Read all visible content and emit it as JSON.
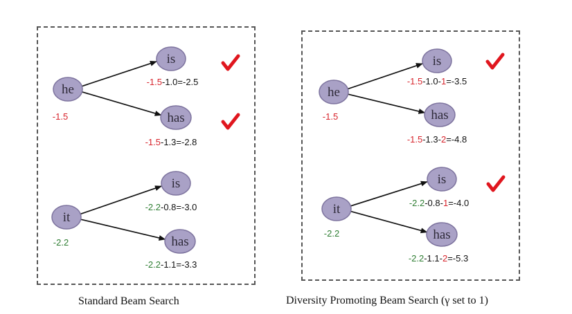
{
  "colors": {
    "node_fill": "#a9a1c6",
    "node_stroke": "#7d739e",
    "red": "#d7232b",
    "green": "#2e7d32",
    "black": "#111111",
    "check": "#e0161e"
  },
  "panels": [
    {
      "caption": "Standard Beam Search",
      "groups": [
        {
          "parent": {
            "label": "he",
            "score": [
              {
                "t": "-1.5",
                "c": "red"
              }
            ]
          },
          "children": [
            {
              "label": "is",
              "selected": true,
              "score": [
                {
                  "t": "-1.5",
                  "c": "red"
                },
                {
                  "t": "-1.0=-2.5",
                  "c": "black"
                }
              ]
            },
            {
              "label": "has",
              "selected": true,
              "score": [
                {
                  "t": "-1.5",
                  "c": "red"
                },
                {
                  "t": "-1.3=-2.8",
                  "c": "black"
                }
              ]
            }
          ]
        },
        {
          "parent": {
            "label": "it",
            "score": [
              {
                "t": "-2.2",
                "c": "green"
              }
            ]
          },
          "children": [
            {
              "label": "is",
              "selected": false,
              "score": [
                {
                  "t": "-2.2",
                  "c": "green"
                },
                {
                  "t": "-0.8=-3.0",
                  "c": "black"
                }
              ]
            },
            {
              "label": "has",
              "selected": false,
              "score": [
                {
                  "t": "-2.2",
                  "c": "green"
                },
                {
                  "t": "-1.1=-3.3",
                  "c": "black"
                }
              ]
            }
          ]
        }
      ]
    },
    {
      "caption": "Diversity Promoting Beam Search (γ set to 1)",
      "groups": [
        {
          "parent": {
            "label": "he",
            "score": [
              {
                "t": "-1.5",
                "c": "red"
              }
            ]
          },
          "children": [
            {
              "label": "is",
              "selected": true,
              "score": [
                {
                  "t": "-1.5",
                  "c": "red"
                },
                {
                  "t": "-1.0-",
                  "c": "black"
                },
                {
                  "t": "1",
                  "c": "red"
                },
                {
                  "t": "=-3.5",
                  "c": "black"
                }
              ]
            },
            {
              "label": "has",
              "selected": false,
              "score": [
                {
                  "t": "-1.5",
                  "c": "red"
                },
                {
                  "t": "-1.3-",
                  "c": "black"
                },
                {
                  "t": "2",
                  "c": "red"
                },
                {
                  "t": "=-4.8",
                  "c": "black"
                }
              ]
            }
          ]
        },
        {
          "parent": {
            "label": "it",
            "score": [
              {
                "t": "-2.2",
                "c": "green"
              }
            ]
          },
          "children": [
            {
              "label": "is",
              "selected": true,
              "score": [
                {
                  "t": "-2.2",
                  "c": "green"
                },
                {
                  "t": "-0.8-",
                  "c": "black"
                },
                {
                  "t": "1",
                  "c": "red"
                },
                {
                  "t": "=-4.0",
                  "c": "black"
                }
              ]
            },
            {
              "label": "has",
              "selected": false,
              "score": [
                {
                  "t": "-2.2",
                  "c": "green"
                },
                {
                  "t": "-1.1-",
                  "c": "black"
                },
                {
                  "t": "2",
                  "c": "red"
                },
                {
                  "t": "=-5.3",
                  "c": "black"
                }
              ]
            }
          ]
        }
      ]
    }
  ]
}
